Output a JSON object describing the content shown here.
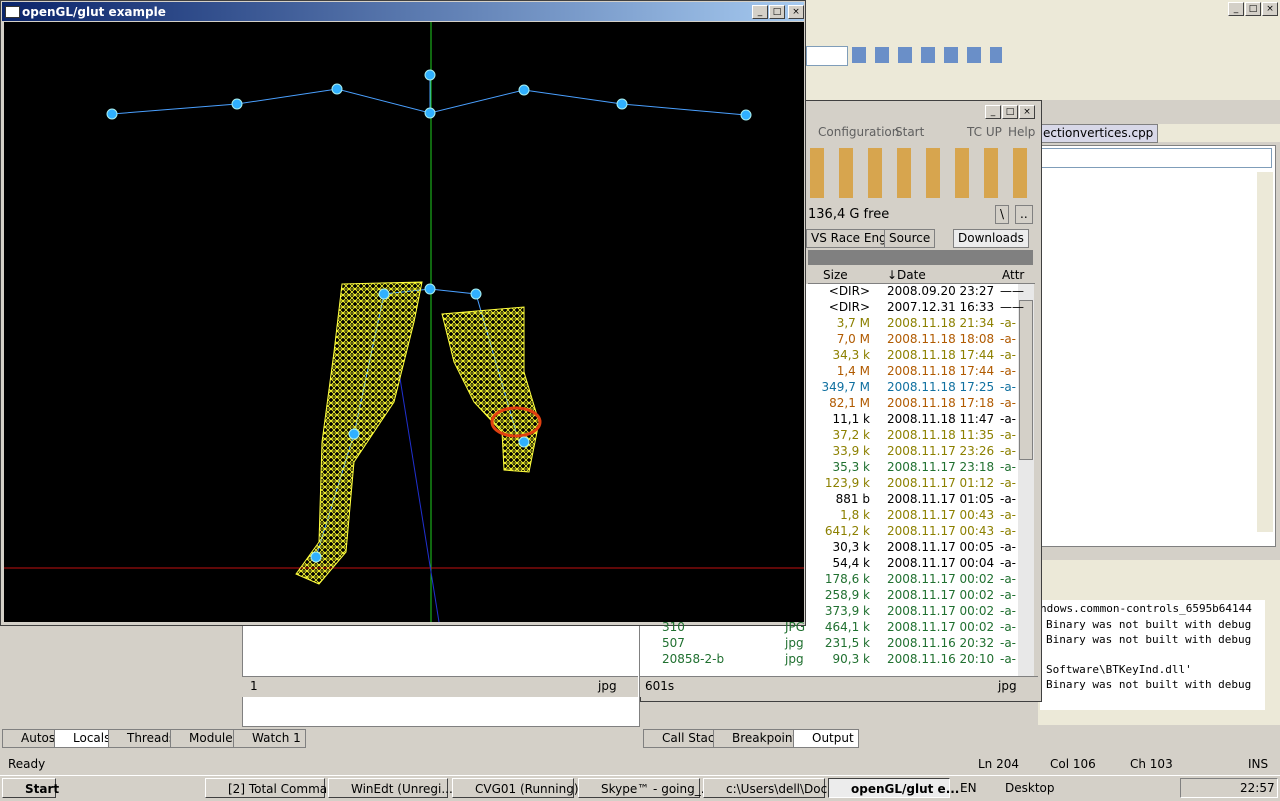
{
  "opengl_window": {
    "title": "openGL/glut example"
  },
  "vs": {
    "tab": "ectionvertices.cpp",
    "output_lines": [
      "ndows.common-controls_6595b64144",
      "Binary was not built with debug",
      "Binary was not built with debug",
      "Software\\BTKeyInd.dll'",
      "Binary was not built with debug"
    ],
    "bottom_tabs_left": [
      "Autos",
      "Locals",
      "Threads",
      "Modules",
      "Watch 1"
    ],
    "bottom_tabs_right": [
      "Call Stack",
      "Breakpoints",
      "Output"
    ],
    "status": {
      "ready": "Ready",
      "ln": "Ln 204",
      "col": "Col 106",
      "ch": "Ch 103",
      "ins": "INS"
    }
  },
  "tc": {
    "menu": [
      "Configuration",
      "Start",
      "TC UP",
      "Help"
    ],
    "free": "136,4 G free",
    "drive_buttons": [
      "\\",
      ".."
    ],
    "tabs": [
      "VS Race Eng",
      "Source",
      "Downloads"
    ],
    "columns": [
      "Size",
      "↓Date",
      "Attr"
    ],
    "rows": [
      {
        "name": "",
        "ext": "",
        "size": "<DIR>",
        "date": "2008.09.20 23:27",
        "attr": "——",
        "color": "#000000"
      },
      {
        "name": "",
        "ext": "",
        "size": "<DIR>",
        "date": "2007.12.31 16:33",
        "attr": "——",
        "color": "#000000"
      },
      {
        "name": "",
        "ext": "",
        "size": "3,7 M",
        "date": "2008.11.18 21:34",
        "attr": "-a-",
        "color": "#8c8000"
      },
      {
        "name": "",
        "ext": "",
        "size": "7,0 M",
        "date": "2008.11.18 18:08",
        "attr": "-a-",
        "color": "#b05a00"
      },
      {
        "name": "",
        "ext": "",
        "size": "34,3 k",
        "date": "2008.11.18 17:44",
        "attr": "-a-",
        "color": "#8c8000"
      },
      {
        "name": "",
        "ext": "",
        "size": "1,4 M",
        "date": "2008.11.18 17:44",
        "attr": "-a-",
        "color": "#b05a00"
      },
      {
        "name": "",
        "ext": "",
        "size": "349,7 M",
        "date": "2008.11.18 17:25",
        "attr": "-a-",
        "color": "#1070a0"
      },
      {
        "name": "",
        "ext": "",
        "size": "82,1 M",
        "date": "2008.11.18 17:18",
        "attr": "-a-",
        "color": "#b05a00"
      },
      {
        "name": "",
        "ext": "",
        "size": "11,1 k",
        "date": "2008.11.18 11:47",
        "attr": "-a-",
        "color": "#000000"
      },
      {
        "name": "",
        "ext": "",
        "size": "37,2 k",
        "date": "2008.11.18 11:35",
        "attr": "-a-",
        "color": "#8c8000"
      },
      {
        "name": "",
        "ext": "",
        "size": "33,9 k",
        "date": "2008.11.17 23:26",
        "attr": "-a-",
        "color": "#8c8000"
      },
      {
        "name": "",
        "ext": "",
        "size": "35,3 k",
        "date": "2008.11.17 23:18",
        "attr": "-a-",
        "color": "#207030"
      },
      {
        "name": "",
        "ext": "",
        "size": "123,9 k",
        "date": "2008.11.17 01:12",
        "attr": "-a-",
        "color": "#8c8000"
      },
      {
        "name": "",
        "ext": "",
        "size": "881 b",
        "date": "2008.11.17 01:05",
        "attr": "-a-",
        "color": "#000000"
      },
      {
        "name": "",
        "ext": "",
        "size": "1,8 k",
        "date": "2008.11.17 00:43",
        "attr": "-a-",
        "color": "#8c8000"
      },
      {
        "name": "",
        "ext": "",
        "size": "641,2 k",
        "date": "2008.11.17 00:43",
        "attr": "-a-",
        "color": "#8c8000"
      },
      {
        "name": "",
        "ext": "",
        "size": "30,3 k",
        "date": "2008.11.17 00:05",
        "attr": "-a-",
        "color": "#000000"
      },
      {
        "name": "",
        "ext": "",
        "size": "54,4 k",
        "date": "2008.11.17 00:04",
        "attr": "-a-",
        "color": "#000000"
      },
      {
        "name": "",
        "ext": "",
        "size": "178,6 k",
        "date": "2008.11.17 00:02",
        "attr": "-a-",
        "color": "#207030"
      },
      {
        "name": "",
        "ext": "",
        "size": "258,9 k",
        "date": "2008.11.17 00:02",
        "attr": "-a-",
        "color": "#207030"
      },
      {
        "name": "",
        "ext": "",
        "size": "373,9 k",
        "date": "2008.11.17 00:02",
        "attr": "-a-",
        "color": "#207030"
      },
      {
        "name": "310",
        "ext": "JPG",
        "size": "464,1 k",
        "date": "2008.11.17 00:02",
        "attr": "-a-",
        "color": "#207030"
      },
      {
        "name": "507",
        "ext": "jpg",
        "size": "231,5 k",
        "date": "2008.11.16 20:32",
        "attr": "-a-",
        "color": "#207030"
      },
      {
        "name": "20858-2-b",
        "ext": "jpg",
        "size": "90,3 k",
        "date": "2008.11.16 20:10",
        "attr": "-a-",
        "color": "#207030"
      }
    ],
    "status_right": {
      "count": "601s",
      "ext": "jpg"
    },
    "status_left": {
      "count": "1",
      "ext": "jpg"
    }
  },
  "taskbar": {
    "start": "Start",
    "items": [
      "[2] Total Comma...",
      "WinEdt  (Unregi...",
      "CVG01 (Running)...",
      "Skype™ - going_...",
      "c:\\Users\\dell\\Doc...",
      "openGL/glut e..."
    ],
    "lang": "EN",
    "desktop": "Desktop",
    "clock": "22:57"
  }
}
